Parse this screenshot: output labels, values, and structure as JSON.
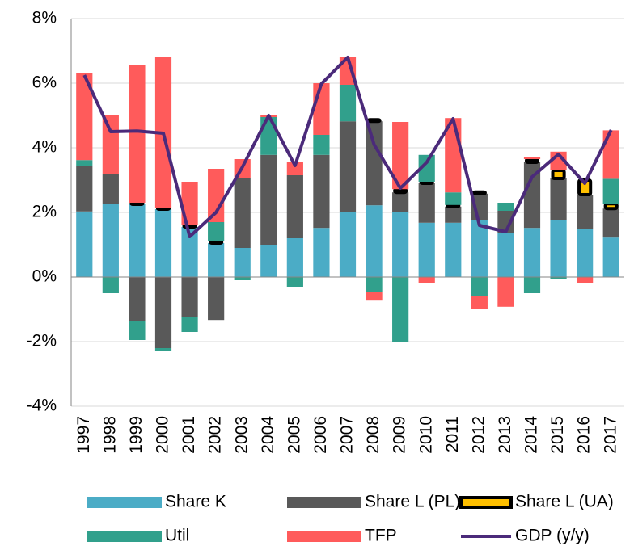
{
  "chart_data": {
    "type": "bar",
    "categories": [
      "1997",
      "1998",
      "1999",
      "2000",
      "2001",
      "2002",
      "2003",
      "2004",
      "2005",
      "2006",
      "2007",
      "2008",
      "2009",
      "2010",
      "2011",
      "2012",
      "2013",
      "2014",
      "2015",
      "2016",
      "2017"
    ],
    "ylim": [
      -4,
      8
    ],
    "yticks": [
      {
        "value": -4,
        "label": "-4%"
      },
      {
        "value": -2,
        "label": "-2%"
      },
      {
        "value": 0,
        "label": "0%"
      },
      {
        "value": 2,
        "label": "2%"
      },
      {
        "value": 4,
        "label": "4%"
      },
      {
        "value": 6,
        "label": "6%"
      },
      {
        "value": 8,
        "label": "8%"
      }
    ],
    "grid": true,
    "series": [
      {
        "name": "Share K",
        "color": "#4bacc6",
        "type": "bar",
        "values": [
          2.03,
          2.25,
          2.25,
          2.1,
          1.55,
          1.05,
          0.9,
          1.0,
          1.2,
          1.52,
          2.02,
          2.22,
          2.0,
          1.68,
          1.68,
          1.75,
          1.35,
          1.52,
          1.75,
          1.5,
          1.22
        ]
      },
      {
        "name": "Share L (PL)",
        "color": "#595959",
        "type": "bar",
        "values": [
          1.42,
          0.95,
          -1.35,
          -2.2,
          -1.25,
          -1.33,
          2.15,
          2.78,
          1.95,
          2.26,
          2.8,
          2.6,
          0.62,
          1.22,
          0.5,
          0.83,
          0.7,
          2.03,
          1.3,
          1.05,
          0.9
        ]
      },
      {
        "name": "Share L (UA)",
        "color": "#ffc000",
        "type": "bar",
        "values": [
          0,
          0,
          0.05,
          0.05,
          0.05,
          0.05,
          0,
          0,
          0,
          0,
          0,
          0.05,
          0.1,
          0.05,
          0.05,
          0.05,
          0,
          0.1,
          0.25,
          0.45,
          0.15
        ]
      },
      {
        "name": "Util",
        "color": "#31a08c",
        "type": "bar",
        "values": [
          0.17,
          -0.5,
          -0.6,
          -0.1,
          -0.45,
          0.6,
          -0.1,
          1.17,
          -0.3,
          0.62,
          1.13,
          -0.45,
          -2.0,
          0.83,
          0.39,
          -0.6,
          0.25,
          -0.5,
          -0.07,
          0,
          0.77
        ]
      },
      {
        "name": "TFP",
        "color": "#ff5b5b",
        "type": "bar",
        "values": [
          2.68,
          1.8,
          4.25,
          4.67,
          1.35,
          1.65,
          0.6,
          0.05,
          0.4,
          1.6,
          0.87,
          -0.28,
          2.08,
          -0.2,
          2.3,
          -0.4,
          -0.92,
          0.07,
          0.58,
          -0.2,
          1.5
        ]
      },
      {
        "name": "GDP (y/y)",
        "color": "#4b2a7a",
        "type": "line",
        "values": [
          6.25,
          4.5,
          4.52,
          4.45,
          1.25,
          2.0,
          3.4,
          5.0,
          3.45,
          5.98,
          6.8,
          4.1,
          2.75,
          3.55,
          4.9,
          1.6,
          1.4,
          3.1,
          3.8,
          2.9,
          4.55
        ]
      }
    ]
  }
}
